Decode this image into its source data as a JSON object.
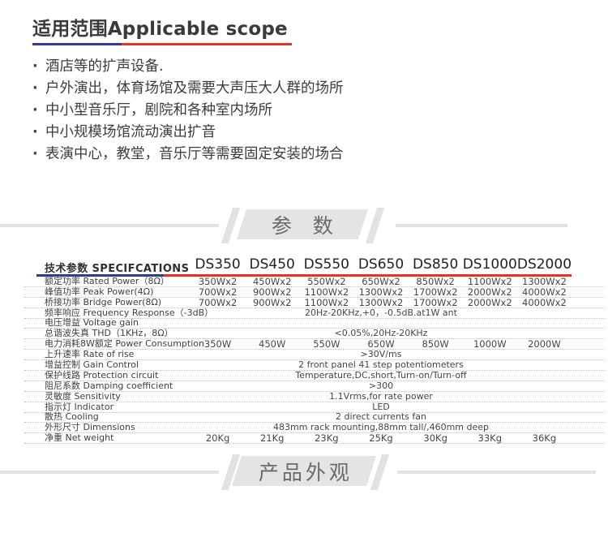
{
  "applicable": {
    "title": "适用范围Applicable scope",
    "bullets": [
      "酒店等的扩声设备.",
      "户外演出，体育场馆及需要大声压大人群的场所",
      "中小型音乐厅，剧院和各种室内场所",
      "中小规模场馆流动演出扩音",
      "表演中心，教堂，音乐厅等需要固定安装的场合"
    ]
  },
  "params_banner": {
    "label": "参 数"
  },
  "appearance_banner": {
    "label": "产品外观"
  },
  "spec_table": {
    "header_label": "技术参数 SPECIFCATIONS",
    "columns": [
      "DS350",
      "DS450",
      "DS550",
      "DS650",
      "DS850",
      "DS1000",
      "DS2000"
    ],
    "rows": [
      {
        "label": "额定功率 Rated Power（8Ω）",
        "type": "cols",
        "values": [
          "350Wx2",
          "450Wx2",
          "550Wx2",
          "650Wx2",
          "850Wx2",
          "1100Wx2",
          "1300Wx2"
        ]
      },
      {
        "label": "峰值功率 Peak Power(4Ω)",
        "type": "cols",
        "values": [
          "700Wx2",
          "900Wx2",
          "1100Wx2",
          "1300Wx2",
          "1700Wx2",
          "2000Wx2",
          "4000Wx2"
        ]
      },
      {
        "label": "桥接功率 Bridge Power(8Ω)",
        "type": "cols",
        "values": [
          "700Wx2",
          "900Wx2",
          "1100Wx2",
          "1300Wx2",
          "1700Wx2",
          "2000Wx2",
          "4000Wx2"
        ]
      },
      {
        "label": "频率响应 Frequency Response（-3dB）",
        "type": "span",
        "value": "20Hz-20KHz,+0，-0.5dB.at1W ant"
      },
      {
        "label": "电压增益 Voltage gain",
        "type": "span",
        "value": ""
      },
      {
        "label": "总谐波失真 THD（1KHz，8Ω）",
        "type": "span",
        "value": "<0.05%,20Hz-20KHz"
      },
      {
        "label": "电力消耗8W额定 Power Consumption",
        "type": "cols",
        "values": [
          "350W",
          "450W",
          "550W",
          "650W",
          "850W",
          "1000W",
          "2000W"
        ]
      },
      {
        "label": "上升速率 Rate of rise",
        "type": "span",
        "value": ">30V/ms"
      },
      {
        "label": "增益控制 Gain Control",
        "type": "span",
        "value": "2 front panel 41 step potentiometers"
      },
      {
        "label": "保护线路 Protection circuit",
        "type": "span",
        "value": "Temperature,DC,short,Turn-on/Turn-off"
      },
      {
        "label": "阻尼系数 Damping coefficient",
        "type": "span",
        "value": ">300"
      },
      {
        "label": "灵敏度 Sensitivity",
        "type": "span",
        "value": "1.1Vrms,for rate power"
      },
      {
        "label": "指示灯 Indicator",
        "type": "span",
        "value": "LED"
      },
      {
        "label": "散热 Cooling",
        "type": "span",
        "value": "2 direct currents fan"
      },
      {
        "label": "外形尺寸 Dimensions",
        "type": "span",
        "value": "483mm rack mounting,88mm tall/,460mm deep"
      },
      {
        "label": "净重 Net weight",
        "type": "cols",
        "values": [
          "20Kg",
          "21Kg",
          "23Kg",
          "25Kg",
          "30Kg",
          "33Kg",
          "36Kg"
        ]
      }
    ]
  },
  "colors": {
    "accent_blue": "#2f3e93",
    "accent_red": "#e73327",
    "banner_gray": "#e4e4e4",
    "banner_text": "#6a6a6a",
    "dotted_line": "#c2c2c2"
  }
}
